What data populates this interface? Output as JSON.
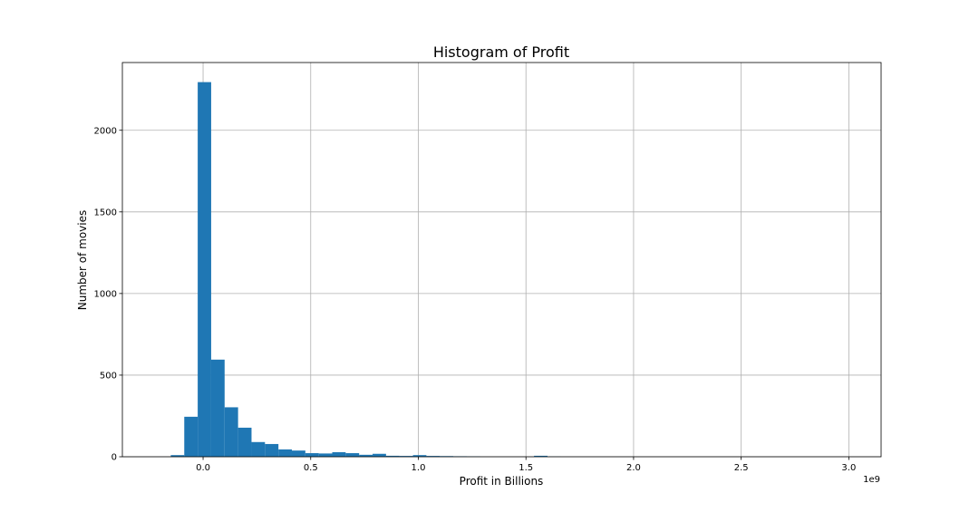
{
  "chart_data": {
    "type": "bar",
    "title": "Histogram of Profit",
    "xlabel": "Profit in Billions",
    "ylabel": "Number of movies",
    "x_offset_label": "1e9",
    "xlim": [
      -0.375,
      3.15
    ],
    "ylim": [
      0,
      2415
    ],
    "x_ticks": [
      0.0,
      0.5,
      1.0,
      1.5,
      2.0,
      2.5,
      3.0
    ],
    "x_tick_labels": [
      "0.0",
      "0.5",
      "1.0",
      "1.5",
      "2.0",
      "2.5",
      "3.0"
    ],
    "y_ticks": [
      0,
      500,
      1000,
      1500,
      2000
    ],
    "y_tick_labels": [
      "0",
      "500",
      "1000",
      "1500",
      "2000"
    ],
    "grid": true,
    "bar_color": "#1f77b4",
    "bin_width": 0.0625,
    "bin_edges_start": -0.15,
    "values": [
      10,
      245,
      2295,
      595,
      303,
      178,
      90,
      78,
      45,
      38,
      22,
      20,
      28,
      22,
      12,
      18,
      6,
      5,
      10,
      5,
      4,
      3,
      2,
      0,
      0,
      0,
      0,
      6,
      1,
      0,
      0,
      0,
      0,
      0,
      0,
      0,
      0,
      0,
      0,
      0,
      0,
      0,
      0,
      0,
      0,
      0,
      0,
      0,
      0,
      0,
      0,
      0
    ]
  }
}
